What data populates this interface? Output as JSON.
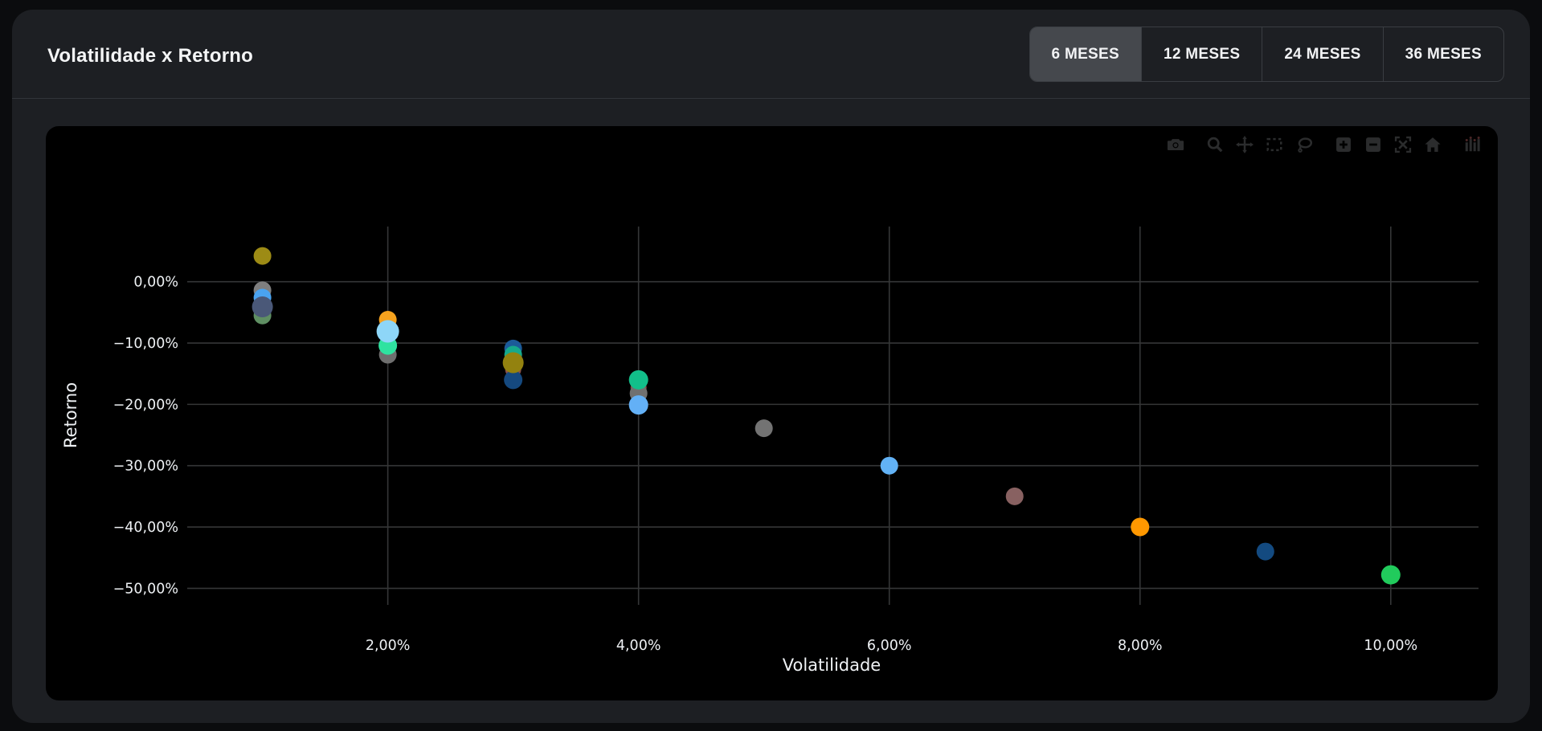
{
  "page": {
    "title": "Volatilidade x Retorno"
  },
  "tabs": [
    {
      "label": "6 MESES",
      "active": true
    },
    {
      "label": "12 MESES",
      "active": false
    },
    {
      "label": "24 MESES",
      "active": false
    },
    {
      "label": "36 MESES",
      "active": false
    }
  ],
  "modebar": {
    "icon_color": "#2b2c2d",
    "icons": [
      "camera-icon",
      "zoom-icon",
      "pan-icon",
      "box-select-icon",
      "lasso-select-icon",
      "zoom-in-icon",
      "zoom-out-icon",
      "autoscale-icon",
      "reset-home-icon",
      "plotly-logo-icon"
    ]
  },
  "colors": {
    "page_bg": "#0b0c0e",
    "card_bg": "#1d1f23",
    "chart_bg": "#000000",
    "grid": "#353637",
    "tick_text": "#eef1f4",
    "active_tab_bg": "#45484d",
    "tab_border": "#3a3d42"
  },
  "chart_data": {
    "type": "scatter",
    "title": "Volatilidade x Retorno",
    "xlabel": "Volatilidade",
    "ylabel": "Retorno",
    "xlim": [
      0.4,
      10.7
    ],
    "ylim": [
      -52.7,
      9.0
    ],
    "grid": true,
    "legend": "none",
    "x_ticks": [
      {
        "v": 2,
        "label": "2,00%"
      },
      {
        "v": 4,
        "label": "4,00%"
      },
      {
        "v": 6,
        "label": "6,00%"
      },
      {
        "v": 8,
        "label": "8,00%"
      },
      {
        "v": 10,
        "label": "10,00%"
      }
    ],
    "y_ticks": [
      {
        "v": 0,
        "label": "0,00%"
      },
      {
        "v": -10,
        "label": "−10,00%"
      },
      {
        "v": -20,
        "label": "−20,00%"
      },
      {
        "v": -30,
        "label": "−30,00%"
      },
      {
        "v": -40,
        "label": "−40,00%"
      },
      {
        "v": -50,
        "label": "−50,00%"
      }
    ],
    "points": [
      {
        "x": 1,
        "y": 4.2,
        "color": "#9d8b15",
        "r": 11
      },
      {
        "x": 1,
        "y": -1.4,
        "color": "#7f7f7f",
        "r": 11
      },
      {
        "x": 1,
        "y": -2.6,
        "color": "#4aa3f0",
        "r": 11
      },
      {
        "x": 1,
        "y": -5.5,
        "color": "#5f8f63",
        "r": 11
      },
      {
        "x": 1,
        "y": -4.1,
        "color": "#4a5878",
        "r": 13
      },
      {
        "x": 2,
        "y": -6.2,
        "color": "#f6a21e",
        "r": 11
      },
      {
        "x": 2,
        "y": -11.9,
        "color": "#6f6f6f",
        "r": 11
      },
      {
        "x": 2,
        "y": -10.4,
        "color": "#2fe3a0",
        "r": 11.5
      },
      {
        "x": 2,
        "y": -8.1,
        "color": "#8ed6f8",
        "r": 14
      },
      {
        "x": 3,
        "y": -10.9,
        "color": "#1c5a99",
        "r": 11
      },
      {
        "x": 3,
        "y": -11.9,
        "color": "#16a98b",
        "r": 11
      },
      {
        "x": 3,
        "y": -14.3,
        "color": "#8a5049",
        "r": 10
      },
      {
        "x": 3,
        "y": -16.0,
        "color": "#15497f",
        "r": 11.5
      },
      {
        "x": 3,
        "y": -13.2,
        "color": "#93820f",
        "r": 13
      },
      {
        "x": 4,
        "y": -17.3,
        "color": "#8a5049",
        "r": 10
      },
      {
        "x": 4,
        "y": -18.2,
        "color": "#707070",
        "r": 11
      },
      {
        "x": 4,
        "y": -16.0,
        "color": "#12bf8a",
        "r": 12
      },
      {
        "x": 4,
        "y": -20.1,
        "color": "#63b0f6",
        "r": 12
      },
      {
        "x": 5,
        "y": -23.9,
        "color": "#737373",
        "r": 11
      },
      {
        "x": 6,
        "y": -30.0,
        "color": "#62b2f5",
        "r": 11
      },
      {
        "x": 7,
        "y": -35.0,
        "color": "#886161",
        "r": 11
      },
      {
        "x": 8,
        "y": -40.0,
        "color": "#ff9800",
        "r": 11.5
      },
      {
        "x": 9,
        "y": -44.0,
        "color": "#134a80",
        "r": 11
      },
      {
        "x": 10,
        "y": -47.8,
        "color": "#21cb5c",
        "r": 12
      }
    ]
  }
}
